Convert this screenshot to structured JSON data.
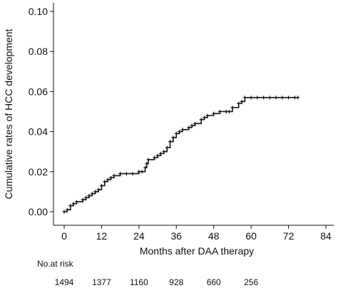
{
  "chart_data": {
    "type": "line",
    "xlabel": "Months after DAA therapy",
    "ylabel": "Cumulative rates of HCC development",
    "xlim": [
      0,
      84
    ],
    "ylim": [
      0,
      0.1
    ],
    "x_ticks": [
      "0",
      "12",
      "24",
      "36",
      "48",
      "60",
      "72",
      "84"
    ],
    "y_ticks": [
      "0.00",
      "0.02",
      "0.04",
      "0.06",
      "0.08",
      "0.10"
    ],
    "grid": false,
    "legend": "none",
    "line_color": "#111111",
    "series": [
      {
        "points": [
          [
            0,
            0.0
          ],
          [
            1,
            0.001
          ],
          [
            2,
            0.003
          ],
          [
            3,
            0.004
          ],
          [
            4,
            0.005
          ],
          [
            6,
            0.006
          ],
          [
            7,
            0.007
          ],
          [
            8,
            0.008
          ],
          [
            9,
            0.009
          ],
          [
            10,
            0.01
          ],
          [
            11,
            0.011
          ],
          [
            12,
            0.013
          ],
          [
            13,
            0.015
          ],
          [
            14,
            0.016
          ],
          [
            15,
            0.017
          ],
          [
            16,
            0.018
          ],
          [
            18,
            0.019
          ],
          [
            20,
            0.019
          ],
          [
            22,
            0.019
          ],
          [
            24,
            0.02
          ],
          [
            25,
            0.02
          ],
          [
            26,
            0.022
          ],
          [
            26.5,
            0.024
          ],
          [
            27,
            0.026
          ],
          [
            29,
            0.027
          ],
          [
            30,
            0.028
          ],
          [
            31,
            0.029
          ],
          [
            32,
            0.03
          ],
          [
            33,
            0.032
          ],
          [
            34,
            0.035
          ],
          [
            35,
            0.037
          ],
          [
            36,
            0.039
          ],
          [
            37,
            0.04
          ],
          [
            38,
            0.041
          ],
          [
            40,
            0.042
          ],
          [
            41,
            0.043
          ],
          [
            42,
            0.044
          ],
          [
            44,
            0.046
          ],
          [
            45,
            0.047
          ],
          [
            46,
            0.048
          ],
          [
            48,
            0.049
          ],
          [
            50,
            0.05
          ],
          [
            52,
            0.05
          ],
          [
            53,
            0.05
          ],
          [
            54,
            0.052
          ],
          [
            56,
            0.054
          ],
          [
            57,
            0.055
          ],
          [
            58,
            0.057
          ],
          [
            60,
            0.057
          ],
          [
            62,
            0.057
          ],
          [
            64,
            0.057
          ],
          [
            66,
            0.057
          ],
          [
            68,
            0.057
          ],
          [
            70,
            0.057
          ],
          [
            72,
            0.057
          ],
          [
            74,
            0.057
          ],
          [
            75,
            0.057
          ]
        ]
      }
    ],
    "risk_table": {
      "label": "No.at risk",
      "values": [
        "1494",
        "1377",
        "1160",
        "928",
        "660",
        "256"
      ]
    }
  }
}
